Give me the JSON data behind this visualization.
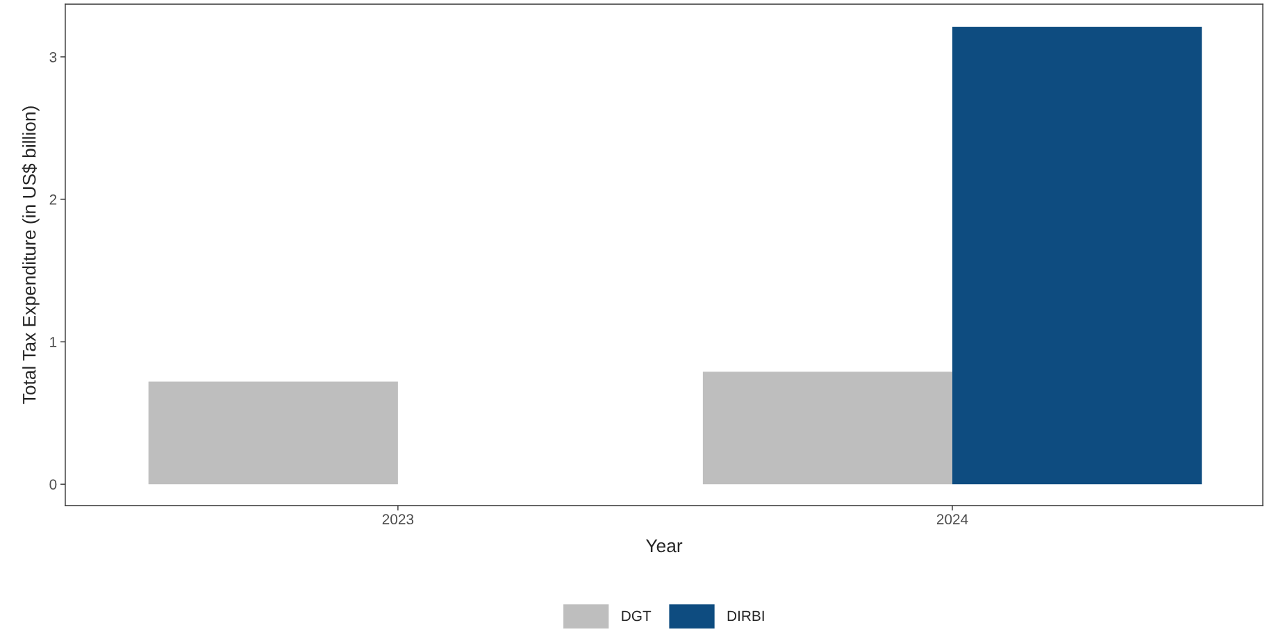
{
  "chart_data": {
    "type": "bar",
    "xlabel": "Year",
    "ylabel": "Total Tax Expenditure (in US$ billion)",
    "categories": [
      "2023",
      "2024"
    ],
    "series": [
      {
        "name": "DGT",
        "color": "#bebebe",
        "values": [
          0.72,
          0.79
        ]
      },
      {
        "name": "DIRBI",
        "color": "#0e4c80",
        "values": [
          null,
          3.21
        ]
      }
    ],
    "ylim": [
      -0.15,
      3.37
    ],
    "yticks": [
      0,
      1,
      2,
      3
    ],
    "grid": false,
    "legend": "bottom"
  }
}
